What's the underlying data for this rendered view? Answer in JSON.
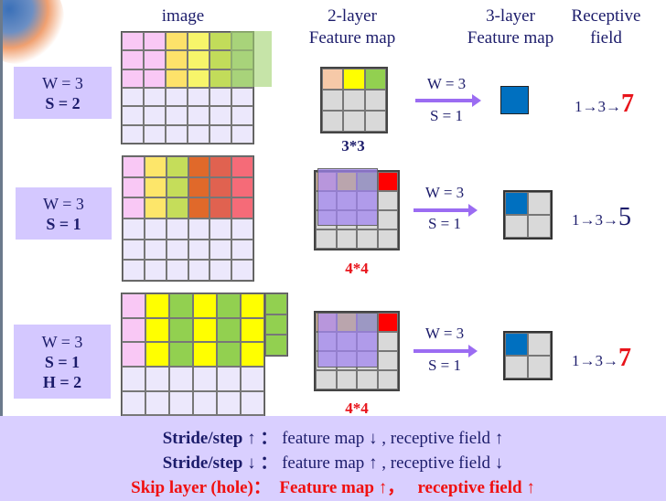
{
  "headers": {
    "image": "image",
    "layer2_line1": "2-layer",
    "layer2_line2": "Feature map",
    "layer3_line1": "3-layer",
    "layer3_line2": "Feature map",
    "rf_line1": "Receptive",
    "rf_line2": "field"
  },
  "rows": [
    {
      "w": "W = 3",
      "s": "S = 2",
      "h": "",
      "feature_size": "3*3",
      "feature_size_color": "#1c1c6b",
      "arrow_w": "W = 3",
      "arrow_s": "S = 1",
      "rf_prefix": "1→3→",
      "rf_final": "7",
      "rf_final_color": "#e8141b"
    },
    {
      "w": "W = 3",
      "s": "S = 1",
      "h": "",
      "feature_size": "4*4",
      "feature_size_color": "#e8141b",
      "arrow_w": "W = 3",
      "arrow_s": "S = 1",
      "rf_prefix": "1→3→",
      "rf_final": "5",
      "rf_final_color": "#1c1c6b"
    },
    {
      "w": "W = 3",
      "s": "S = 1",
      "h": "H = 2",
      "feature_size": "4*4",
      "feature_size_color": "#e8141b",
      "arrow_w": "W = 3",
      "arrow_s": "S = 1",
      "rf_prefix": "1→3→",
      "rf_final": "7",
      "rf_final_color": "#e8141b"
    }
  ],
  "colors": {
    "pink": "#f9c8f5",
    "yellow": "#ffff00",
    "green": "#92d050",
    "lavender": "#ece8fc",
    "gray": "#d9d9d9",
    "blue": "#0070c0",
    "red": "#ff0000",
    "peach": "#f6c9a8",
    "box": "#d4c8ff",
    "band": "#d9cfff"
  },
  "footer": [
    {
      "bold": "Stride/step ↑",
      "sep": "：",
      "rest": "feature map ↓ , receptive field ↑"
    },
    {
      "bold": "Stride/step ↓",
      "sep": "：",
      "rest": "feature map ↑ , receptive field ↓"
    },
    {
      "text": "Skip layer (hole)：  Feature map ↑，   receptive field ↑"
    }
  ]
}
